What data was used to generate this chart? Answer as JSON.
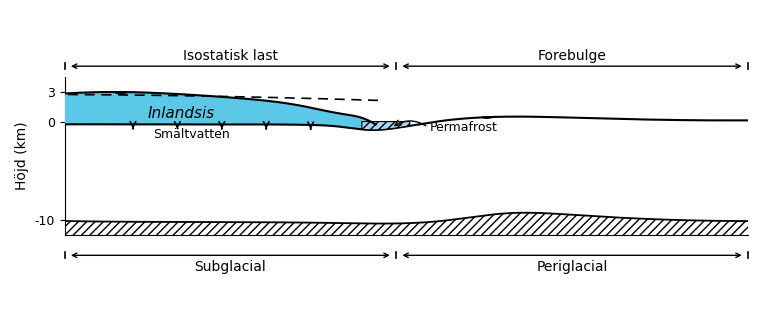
{
  "ylabel": "Höjd (km)",
  "ylim": [
    -11.5,
    4.5
  ],
  "xlim": [
    0,
    10
  ],
  "y_ticks": [
    -10,
    0,
    3
  ],
  "top_labels": {
    "isostatisk_last": "Isostatisk last",
    "forebulge": "Forebulge",
    "divider_x": 4.85
  },
  "bottom_labels": {
    "subglacial": "Subglacial",
    "periglacial": "Periglacial",
    "divider_x": 4.85
  },
  "ice_color": "#5bc8e8",
  "permafrost_hatch_color": "#aad4ef",
  "background_color": "#ffffff"
}
